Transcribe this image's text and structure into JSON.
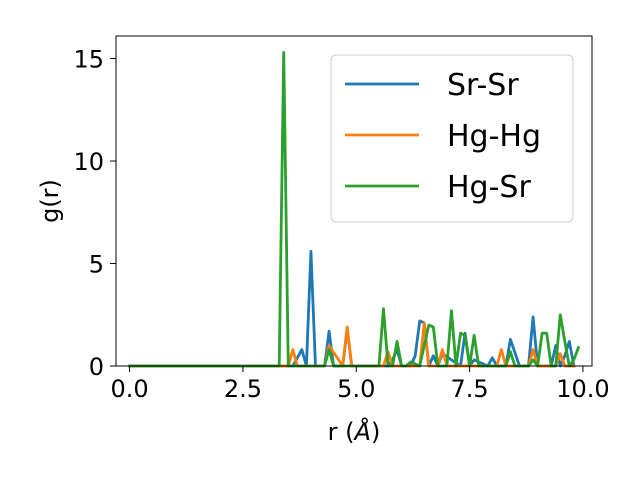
{
  "chart_data": {
    "type": "line",
    "xlabel_main": "r (",
    "xlabel_unit": "Å",
    "xlabel_close": ")",
    "ylabel": "g(r)",
    "xlim": [
      -0.3,
      10.2
    ],
    "ylim": [
      0,
      16.1
    ],
    "xticks": [
      0.0,
      2.5,
      5.0,
      7.5,
      10.0
    ],
    "xtick_labels": [
      "0.0",
      "2.5",
      "5.0",
      "7.5",
      "10.0"
    ],
    "yticks": [
      0,
      5,
      10,
      15
    ],
    "ytick_labels": [
      "0",
      "5",
      "10",
      "15"
    ],
    "grid": false,
    "legend_position": "top-right",
    "series": [
      {
        "name": "Sr-Sr",
        "color": "#1f77b4",
        "x": [
          0.0,
          3.3,
          3.4,
          3.6,
          3.7,
          3.8,
          3.9,
          4.0,
          4.1,
          4.3,
          4.4,
          4.5,
          4.7,
          4.8,
          4.9,
          5.7,
          5.8,
          5.9,
          6.0,
          6.2,
          6.3,
          6.4,
          6.5,
          6.6,
          6.7,
          6.8,
          6.9,
          7.3,
          7.4,
          7.5,
          7.6,
          7.9,
          8.0,
          8.1,
          8.3,
          8.4,
          8.6,
          8.8,
          8.9,
          9.0,
          9.3,
          9.4,
          9.5,
          9.6,
          9.7,
          9.8
        ],
        "y": [
          0,
          0,
          0,
          0,
          0.4,
          0.8,
          0,
          5.6,
          0,
          0,
          1.7,
          0,
          0,
          1.8,
          0,
          0,
          0.3,
          0.8,
          0,
          0,
          0.5,
          2.2,
          2.1,
          0,
          0.5,
          0,
          0.6,
          0,
          1.6,
          0,
          0.3,
          0,
          0.4,
          0,
          0,
          1.3,
          0,
          0,
          2.4,
          0,
          0,
          1.0,
          0,
          0.5,
          1.2,
          0
        ]
      },
      {
        "name": "Hg-Hg",
        "color": "#ff7f0e",
        "x": [
          0.0,
          3.3,
          3.4,
          3.5,
          3.6,
          3.7,
          4.3,
          4.4,
          4.7,
          4.8,
          4.9,
          5.6,
          5.7,
          5.8,
          6.4,
          6.5,
          6.6,
          6.8,
          6.9,
          7.0,
          8.1,
          8.2,
          8.3,
          8.8,
          8.9,
          9.0,
          9.4,
          9.5,
          9.6,
          9.8
        ],
        "y": [
          0,
          0,
          0,
          0,
          0.8,
          0,
          0,
          1.0,
          0,
          1.9,
          0,
          0,
          0.7,
          0,
          0,
          2.1,
          0,
          0,
          0.8,
          0,
          0,
          0.8,
          0,
          0,
          0.8,
          0,
          0,
          0.6,
          0,
          0
        ]
      },
      {
        "name": "Hg-Sr",
        "color": "#2ca02c",
        "x": [
          0.0,
          3.3,
          3.4,
          3.5,
          4.3,
          4.4,
          4.5,
          5.5,
          5.6,
          5.7,
          5.8,
          5.9,
          6.0,
          6.1,
          6.2,
          6.4,
          6.5,
          6.6,
          6.7,
          6.8,
          7.0,
          7.1,
          7.2,
          7.3,
          7.4,
          7.5,
          7.6,
          7.7,
          8.3,
          8.4,
          8.5,
          8.8,
          8.9,
          9.0,
          9.1,
          9.2,
          9.3,
          9.4,
          9.5,
          9.6,
          9.7,
          9.8,
          9.9
        ],
        "y": [
          0,
          0,
          15.3,
          0,
          0,
          0.8,
          0,
          0,
          2.8,
          0,
          0,
          1.2,
          0,
          0,
          0.2,
          0,
          1.0,
          2.0,
          1.9,
          0,
          0,
          2.7,
          0,
          1.6,
          1.5,
          0,
          1.5,
          0,
          0,
          0.7,
          0,
          0,
          0.3,
          0,
          1.6,
          1.6,
          0,
          0,
          2.5,
          1.2,
          0,
          0.3,
          0.9
        ]
      }
    ]
  }
}
